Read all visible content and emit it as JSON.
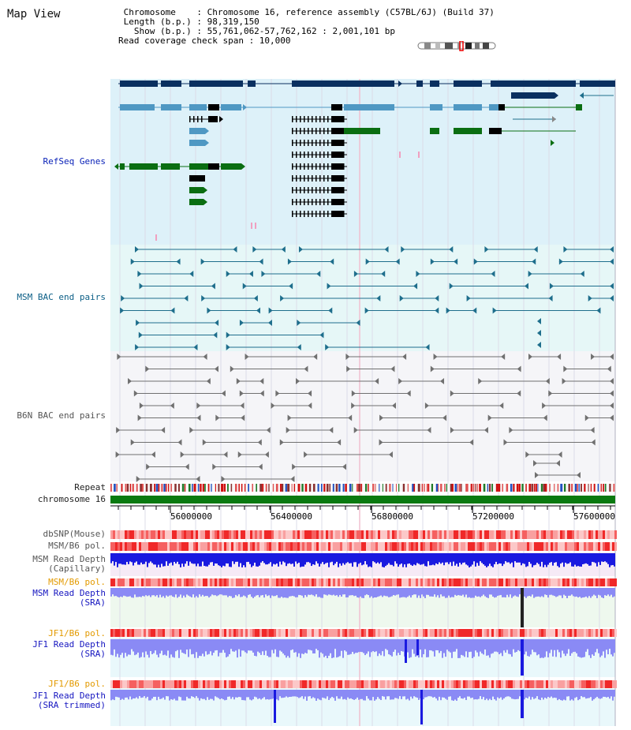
{
  "header": {
    "title": "Map View",
    "info_lines": [
      " Chromosome    : Chromosome 16, reference assembly (C57BL/6J) (Build 37)",
      " Length (b.p.) : 98,319,150",
      "   Show (b.p.) : 55,761,062-57,762,162 : 2,001,101 bp",
      "Read coverage check span : 10,000"
    ]
  },
  "tracks": {
    "refseq": "RefSeq Genes",
    "msm_bac": "MSM BAC end pairs",
    "b6n_bac": "B6N BAC end pairs",
    "repeat": "Repeat",
    "chromosome": "chromosome 16",
    "dbsnp": "dbSNP(Mouse)",
    "msm_b6_pol": "MSM/B6 pol.",
    "msm_depth_cap_1": "MSM Read Depth",
    "msm_depth_cap_2": "(Capillary)",
    "msm_b6_pol_2": "MSM/B6 pol.",
    "msm_depth_sra_1": "MSM Read Depth",
    "msm_depth_sra_2": "(SRA)",
    "jf1_b6_pol": "JF1/B6 pol.",
    "jf1_depth_sra_1": "JF1 Read Depth",
    "jf1_depth_sra_2": "(SRA)",
    "jf1_b6_pol_2": "JF1/B6 pol.",
    "jf1_depth_trim_1": "JF1 Read Depth",
    "jf1_depth_trim_2": "(SRA trimmed)"
  },
  "axis": {
    "ticks": [
      "56000000",
      "56400000",
      "56800000",
      "57200000",
      "57600000"
    ]
  },
  "colors": {
    "refseq_bg": "#ddf1f9",
    "msm_bg": "#e6f7f7",
    "gene_navy": "#0a3060",
    "gene_blue": "#4f98c3",
    "gene_green": "#0a6e12",
    "msm_line": "#1e6e8c",
    "b6n_line": "#707070",
    "chromosome_bar": "#0a7a10",
    "depth_blue": "#1a1ae0",
    "depth_light": "#8a8af5"
  }
}
